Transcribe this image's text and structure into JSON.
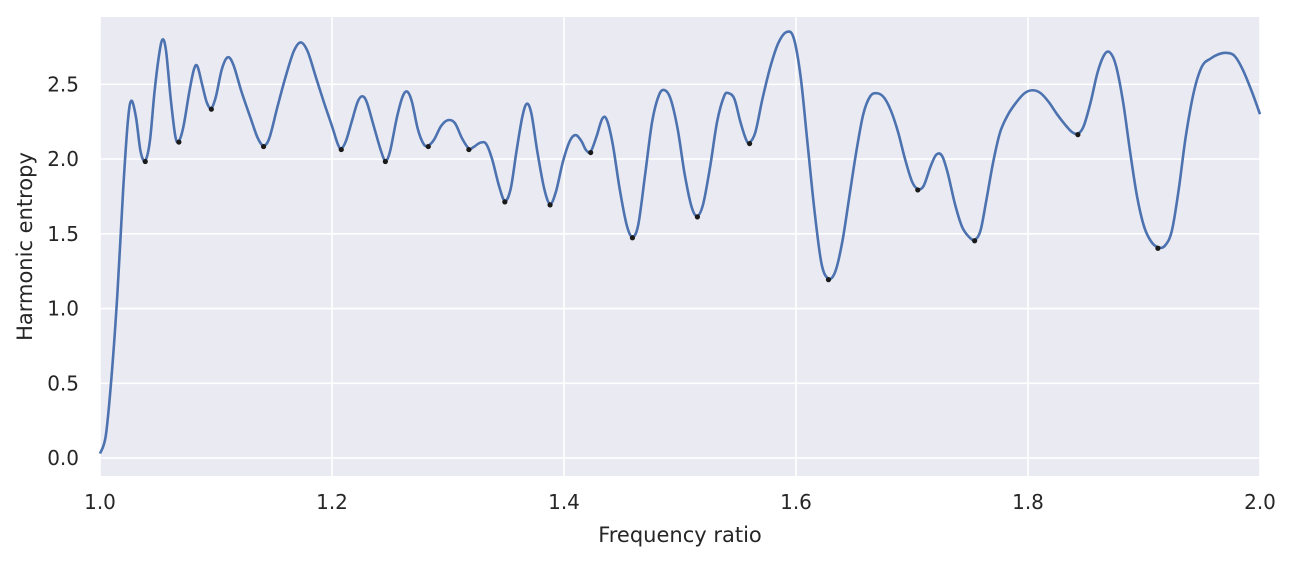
{
  "chart_data": {
    "type": "line",
    "title": "",
    "xlabel": "Frequency ratio",
    "ylabel": "Harmonic entropy",
    "xlim": [
      1.0,
      2.0
    ],
    "ylim": [
      -0.12,
      2.95
    ],
    "xticks": [
      1.0,
      1.2,
      1.4,
      1.6,
      1.8,
      2.0
    ],
    "xtick_labels": [
      "1.0",
      "1.2",
      "1.4",
      "1.6",
      "1.8",
      "2.0"
    ],
    "yticks": [
      0.0,
      0.5,
      1.0,
      1.5,
      2.0,
      2.5
    ],
    "ytick_labels": [
      "0.0",
      "0.5",
      "1.0",
      "1.5",
      "2.0",
      "2.5"
    ],
    "grid": true,
    "colors": {
      "background": "#EAEAF2",
      "grid": "#FFFFFF",
      "line": "#4C72B0",
      "markers": "#1A1A1A"
    },
    "series": [
      {
        "values": [
          [
            1.0,
            0.03
          ],
          [
            1.005,
            0.15
          ],
          [
            1.01,
            0.55
          ],
          [
            1.015,
            1.1
          ],
          [
            1.02,
            1.8
          ],
          [
            1.024,
            2.25
          ],
          [
            1.027,
            2.39
          ],
          [
            1.031,
            2.28
          ],
          [
            1.035,
            2.05
          ],
          [
            1.039,
            1.99
          ],
          [
            1.043,
            2.12
          ],
          [
            1.047,
            2.45
          ],
          [
            1.051,
            2.7
          ],
          [
            1.054,
            2.8
          ],
          [
            1.057,
            2.72
          ],
          [
            1.061,
            2.4
          ],
          [
            1.065,
            2.15
          ],
          [
            1.068,
            2.12
          ],
          [
            1.072,
            2.22
          ],
          [
            1.077,
            2.45
          ],
          [
            1.081,
            2.6
          ],
          [
            1.084,
            2.62
          ],
          [
            1.088,
            2.5
          ],
          [
            1.092,
            2.38
          ],
          [
            1.096,
            2.34
          ],
          [
            1.1,
            2.42
          ],
          [
            1.105,
            2.6
          ],
          [
            1.11,
            2.68
          ],
          [
            1.115,
            2.63
          ],
          [
            1.122,
            2.45
          ],
          [
            1.13,
            2.27
          ],
          [
            1.136,
            2.14
          ],
          [
            1.141,
            2.09
          ],
          [
            1.146,
            2.14
          ],
          [
            1.153,
            2.35
          ],
          [
            1.16,
            2.55
          ],
          [
            1.167,
            2.72
          ],
          [
            1.173,
            2.78
          ],
          [
            1.179,
            2.72
          ],
          [
            1.186,
            2.55
          ],
          [
            1.193,
            2.38
          ],
          [
            1.2,
            2.22
          ],
          [
            1.205,
            2.1
          ],
          [
            1.208,
            2.07
          ],
          [
            1.212,
            2.12
          ],
          [
            1.217,
            2.25
          ],
          [
            1.222,
            2.38
          ],
          [
            1.226,
            2.42
          ],
          [
            1.23,
            2.38
          ],
          [
            1.236,
            2.22
          ],
          [
            1.242,
            2.06
          ],
          [
            1.246,
            1.99
          ],
          [
            1.25,
            2.05
          ],
          [
            1.256,
            2.28
          ],
          [
            1.261,
            2.42
          ],
          [
            1.265,
            2.45
          ],
          [
            1.269,
            2.38
          ],
          [
            1.274,
            2.2
          ],
          [
            1.279,
            2.1
          ],
          [
            1.283,
            2.09
          ],
          [
            1.288,
            2.13
          ],
          [
            1.294,
            2.22
          ],
          [
            1.3,
            2.26
          ],
          [
            1.306,
            2.24
          ],
          [
            1.312,
            2.14
          ],
          [
            1.318,
            2.07
          ],
          [
            1.322,
            2.08
          ],
          [
            1.328,
            2.11
          ],
          [
            1.333,
            2.1
          ],
          [
            1.338,
            2.0
          ],
          [
            1.344,
            1.82
          ],
          [
            1.349,
            1.72
          ],
          [
            1.354,
            1.8
          ],
          [
            1.359,
            2.05
          ],
          [
            1.364,
            2.28
          ],
          [
            1.368,
            2.37
          ],
          [
            1.372,
            2.3
          ],
          [
            1.377,
            2.05
          ],
          [
            1.383,
            1.8
          ],
          [
            1.388,
            1.7
          ],
          [
            1.393,
            1.78
          ],
          [
            1.399,
            1.98
          ],
          [
            1.405,
            2.12
          ],
          [
            1.41,
            2.16
          ],
          [
            1.415,
            2.12
          ],
          [
            1.419,
            2.06
          ],
          [
            1.423,
            2.05
          ],
          [
            1.428,
            2.15
          ],
          [
            1.433,
            2.27
          ],
          [
            1.437,
            2.26
          ],
          [
            1.442,
            2.1
          ],
          [
            1.448,
            1.8
          ],
          [
            1.454,
            1.56
          ],
          [
            1.459,
            1.48
          ],
          [
            1.464,
            1.56
          ],
          [
            1.47,
            1.9
          ],
          [
            1.476,
            2.25
          ],
          [
            1.482,
            2.43
          ],
          [
            1.487,
            2.46
          ],
          [
            1.492,
            2.4
          ],
          [
            1.498,
            2.2
          ],
          [
            1.504,
            1.9
          ],
          [
            1.51,
            1.68
          ],
          [
            1.515,
            1.62
          ],
          [
            1.52,
            1.7
          ],
          [
            1.526,
            1.95
          ],
          [
            1.532,
            2.25
          ],
          [
            1.538,
            2.42
          ],
          [
            1.542,
            2.44
          ],
          [
            1.547,
            2.4
          ],
          [
            1.552,
            2.25
          ],
          [
            1.557,
            2.13
          ],
          [
            1.56,
            2.11
          ],
          [
            1.565,
            2.18
          ],
          [
            1.571,
            2.4
          ],
          [
            1.578,
            2.62
          ],
          [
            1.585,
            2.78
          ],
          [
            1.592,
            2.85
          ],
          [
            1.598,
            2.81
          ],
          [
            1.604,
            2.55
          ],
          [
            1.61,
            2.1
          ],
          [
            1.616,
            1.65
          ],
          [
            1.622,
            1.3
          ],
          [
            1.628,
            1.2
          ],
          [
            1.634,
            1.25
          ],
          [
            1.64,
            1.45
          ],
          [
            1.646,
            1.75
          ],
          [
            1.652,
            2.05
          ],
          [
            1.658,
            2.3
          ],
          [
            1.664,
            2.42
          ],
          [
            1.67,
            2.44
          ],
          [
            1.676,
            2.41
          ],
          [
            1.682,
            2.32
          ],
          [
            1.688,
            2.18
          ],
          [
            1.694,
            2.0
          ],
          [
            1.7,
            1.85
          ],
          [
            1.705,
            1.8
          ],
          [
            1.71,
            1.82
          ],
          [
            1.716,
            1.95
          ],
          [
            1.721,
            2.03
          ],
          [
            1.726,
            2.02
          ],
          [
            1.731,
            1.9
          ],
          [
            1.737,
            1.7
          ],
          [
            1.743,
            1.55
          ],
          [
            1.749,
            1.48
          ],
          [
            1.754,
            1.46
          ],
          [
            1.759,
            1.52
          ],
          [
            1.764,
            1.72
          ],
          [
            1.77,
            1.98
          ],
          [
            1.776,
            2.18
          ],
          [
            1.783,
            2.3
          ],
          [
            1.79,
            2.38
          ],
          [
            1.797,
            2.44
          ],
          [
            1.804,
            2.46
          ],
          [
            1.811,
            2.44
          ],
          [
            1.818,
            2.38
          ],
          [
            1.825,
            2.3
          ],
          [
            1.832,
            2.23
          ],
          [
            1.838,
            2.18
          ],
          [
            1.843,
            2.17
          ],
          [
            1.848,
            2.22
          ],
          [
            1.854,
            2.38
          ],
          [
            1.86,
            2.58
          ],
          [
            1.866,
            2.7
          ],
          [
            1.871,
            2.71
          ],
          [
            1.876,
            2.62
          ],
          [
            1.882,
            2.38
          ],
          [
            1.888,
            2.05
          ],
          [
            1.894,
            1.75
          ],
          [
            1.9,
            1.55
          ],
          [
            1.906,
            1.45
          ],
          [
            1.912,
            1.41
          ],
          [
            1.918,
            1.42
          ],
          [
            1.924,
            1.52
          ],
          [
            1.93,
            1.8
          ],
          [
            1.936,
            2.15
          ],
          [
            1.943,
            2.45
          ],
          [
            1.95,
            2.62
          ],
          [
            1.957,
            2.67
          ],
          [
            1.964,
            2.7
          ],
          [
            1.971,
            2.71
          ],
          [
            1.978,
            2.69
          ],
          [
            1.985,
            2.6
          ],
          [
            1.993,
            2.45
          ],
          [
            2.0,
            2.3
          ]
        ]
      },
      {
        "type": "scatter",
        "values": [
          [
            1.039,
            1.99
          ],
          [
            1.068,
            2.12
          ],
          [
            1.096,
            2.34
          ],
          [
            1.141,
            2.09
          ],
          [
            1.208,
            2.07
          ],
          [
            1.246,
            1.99
          ],
          [
            1.283,
            2.09
          ],
          [
            1.318,
            2.07
          ],
          [
            1.349,
            1.72
          ],
          [
            1.388,
            1.7
          ],
          [
            1.423,
            2.05
          ],
          [
            1.459,
            1.48
          ],
          [
            1.515,
            1.62
          ],
          [
            1.56,
            2.11
          ],
          [
            1.628,
            1.2
          ],
          [
            1.705,
            1.8
          ],
          [
            1.754,
            1.46
          ],
          [
            1.843,
            2.17
          ],
          [
            1.912,
            1.41
          ]
        ]
      }
    ]
  }
}
